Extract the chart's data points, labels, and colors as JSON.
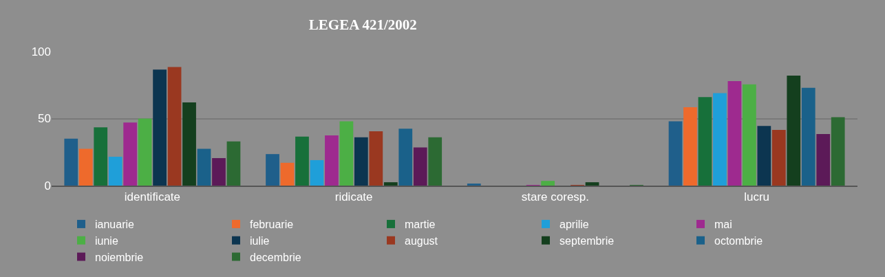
{
  "chart_data": {
    "type": "bar",
    "title": "LEGEA 421/2002",
    "categories": [
      "identificate",
      "ridicate",
      "stare coresp.",
      "lucru"
    ],
    "ylim": [
      0,
      100
    ],
    "yticks": [
      0,
      50,
      100
    ],
    "grid": "y",
    "legend": "bottom",
    "series": [
      {
        "name": "ianuarie",
        "color": "#1f5f8b",
        "values": [
          35,
          23.5,
          1.5,
          48
        ]
      },
      {
        "name": "februarie",
        "color": "#ee6a2c",
        "values": [
          27.5,
          17,
          0,
          58.5
        ]
      },
      {
        "name": "martie",
        "color": "#17703a",
        "values": [
          43.5,
          36.5,
          0,
          66
        ]
      },
      {
        "name": "aprilie",
        "color": "#1f9fd9",
        "values": [
          21.5,
          19,
          0,
          69
        ]
      },
      {
        "name": "mai",
        "color": "#9e2a8f",
        "values": [
          47,
          37.5,
          0.5,
          78
        ]
      },
      {
        "name": "iunie",
        "color": "#4caf45",
        "values": [
          50,
          48,
          3.5,
          75.5
        ]
      },
      {
        "name": "iulie",
        "color": "#0c3550",
        "values": [
          86.5,
          36,
          0,
          44.5
        ]
      },
      {
        "name": "august",
        "color": "#9a3820",
        "values": [
          88.5,
          40.5,
          0.5,
          41.5
        ]
      },
      {
        "name": "septembrie",
        "color": "#143f1e",
        "values": [
          62,
          2.5,
          2.5,
          82
        ]
      },
      {
        "name": "octombrie",
        "color": "#1a618a",
        "values": [
          27.5,
          42.5,
          0,
          73
        ]
      },
      {
        "name": "noiembrie",
        "color": "#5c1a58",
        "values": [
          20.5,
          28.5,
          0,
          38.5
        ]
      },
      {
        "name": "decembrie",
        "color": "#2c6a33",
        "values": [
          33,
          36,
          0.5,
          51
        ]
      }
    ]
  }
}
